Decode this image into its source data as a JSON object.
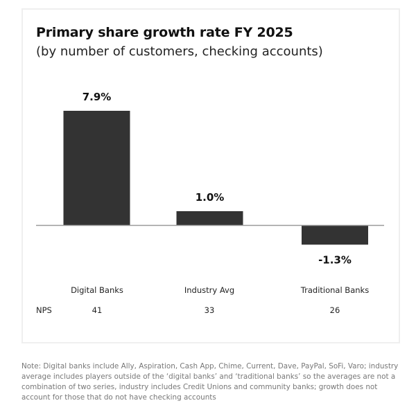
{
  "chart_data": {
    "type": "bar",
    "title": "Primary share growth rate FY 2025",
    "subtitle": "(by number of customers, checking accounts)",
    "categories": [
      "Digital Banks",
      "Industry Avg",
      "Traditional Banks"
    ],
    "values": [
      7.9,
      1.0,
      -1.3
    ],
    "data_labels": [
      "7.9%",
      "1.0%",
      "-1.3%"
    ],
    "unit": "%",
    "xlabel": "",
    "ylabel": "",
    "ylim": [
      -1.3,
      7.9
    ],
    "grid": false,
    "legend": "none",
    "bar_color": "#333333",
    "secondary_row": {
      "label": "NPS",
      "values": [
        "41",
        "33",
        "26"
      ]
    }
  },
  "note": "Note: Digital banks include Ally, Aspiration, Cash App, Chime, Current, Dave, PayPal, SoFi, Varo; industry average includes players outside of the ‘digital banks’ and ‘traditional banks’ so the averages are not a combination of two series, industry includes Credit Unions and community banks; growth does not account for those that do not have checking accounts"
}
